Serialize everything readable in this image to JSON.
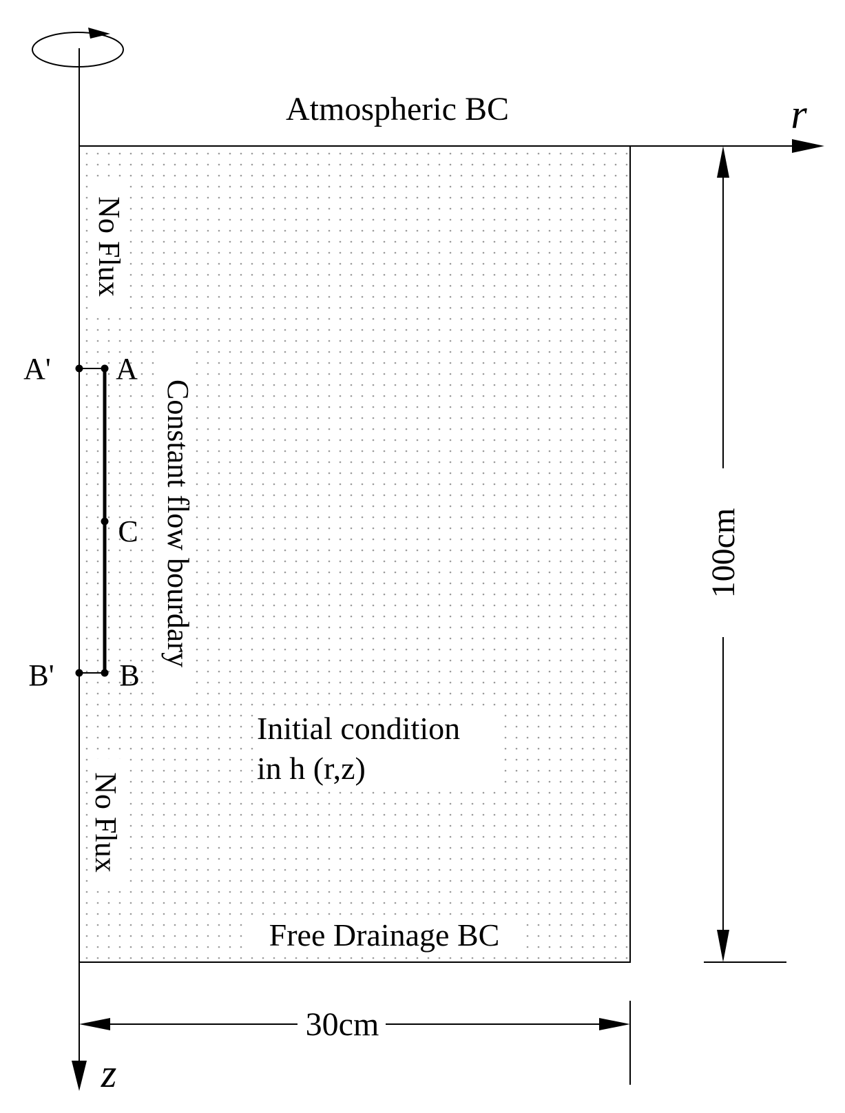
{
  "labels": {
    "top_boundary": "Atmospheric BC",
    "bottom_boundary": "Free Drainage BC",
    "left_upper": "No Flux",
    "left_lower": "No Flux",
    "source_boundary": "Constant flow bourdary",
    "initial_line1": "Initial condition",
    "initial_line2": "in h (r,z)",
    "width_dim": "30cm",
    "height_dim": "100cm",
    "r_axis": "r",
    "z_axis": "z",
    "point_a_prime": "A'",
    "point_a": "A",
    "point_c": "C",
    "point_b_prime": "B'",
    "point_b": "B"
  },
  "colors": {
    "line": "#000000",
    "dot_fill": "#9a9a9a",
    "background": "#ffffff"
  }
}
